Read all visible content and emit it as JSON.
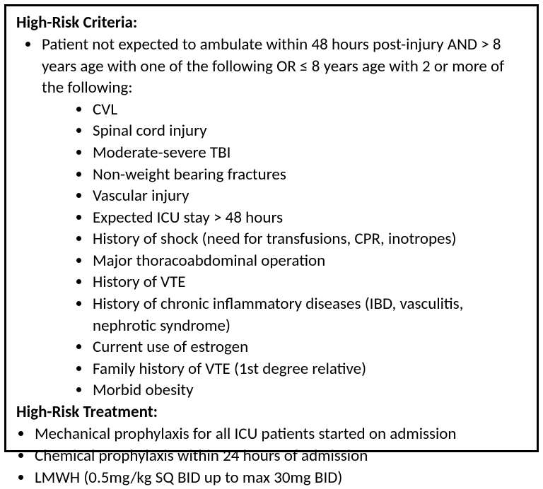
{
  "criteria_heading": "High-Risk Criteria:",
  "criteria_intro": "Patient not expected to ambulate within 48 hours post-injury AND > 8 years age with one of the following OR  ≤ 8 years age with 2 or more of the following:",
  "criteria_items": [
    "CVL",
    "Spinal cord injury",
    "Moderate-severe TBI",
    "Non-weight bearing fractures",
    "Vascular injury",
    "Expected ICU stay > 48 hours",
    "History of shock (need for transfusions, CPR, inotropes)",
    "Major thoracoabdominal operation",
    "History of VTE",
    "History of chronic inflammatory diseases (IBD, vasculitis, nephrotic syndrome)",
    "Current use of estrogen",
    "Family history of VTE (1st degree relative)",
    "Morbid obesity"
  ],
  "treatment_heading": "High-Risk Treatment:",
  "treatment_items": [
    "Mechanical prophylaxis for all ICU patients started on admission",
    "Chemical prophylaxis within 24 hours of admission",
    "LMWH (0.5mg/kg SQ BID up to max 30mg BID)"
  ]
}
